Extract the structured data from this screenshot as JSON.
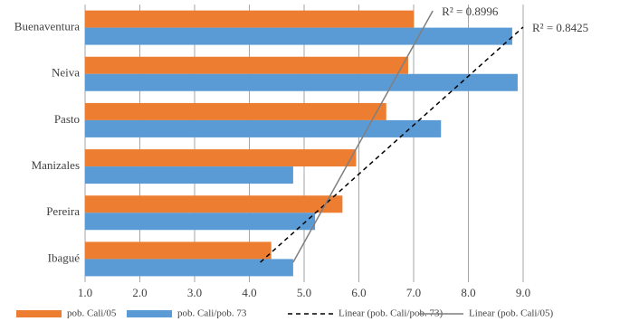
{
  "chart_data": {
    "type": "bar",
    "orientation": "horizontal",
    "categories": [
      "Buenaventura",
      "Neiva",
      "Pasto",
      "Manizales",
      "Pereira",
      "Ibagué"
    ],
    "series": [
      {
        "name": "pob. Cali/05",
        "color": "#ed7d31",
        "values": [
          7.0,
          6.9,
          6.5,
          5.95,
          5.7,
          4.4
        ]
      },
      {
        "name": "pob. Cali/pob. 73",
        "color": "#5b9bd5",
        "values": [
          8.8,
          8.9,
          7.5,
          4.8,
          5.2,
          4.8
        ]
      }
    ],
    "trendlines": [
      {
        "name": "Linear (pob. Cali/pob. 73)",
        "color": "#000000",
        "dashed": true,
        "x_start": 4.2,
        "x_end": 9.0,
        "annotation": "R² = 0.8425"
      },
      {
        "name": "Linear (pob. Cali/05)",
        "color": "#7f7f7f",
        "dashed": false,
        "x_start": 4.8,
        "x_end": 7.35,
        "annotation": "R² = 0.8996"
      }
    ],
    "xlim": [
      1.0,
      9.0
    ],
    "xticks": [
      {
        "value": 1,
        "label": "1.0"
      },
      {
        "value": 2,
        "label": "2.0"
      },
      {
        "value": 3,
        "label": "3.0"
      },
      {
        "value": 4,
        "label": "4.0"
      },
      {
        "value": 5,
        "label": "5.0"
      },
      {
        "value": 6,
        "label": "6.0"
      },
      {
        "value": 7,
        "label": "7.0"
      },
      {
        "value": 8,
        "label": "8.0"
      },
      {
        "value": 9,
        "label": "9.0"
      }
    ],
    "grid": true
  }
}
